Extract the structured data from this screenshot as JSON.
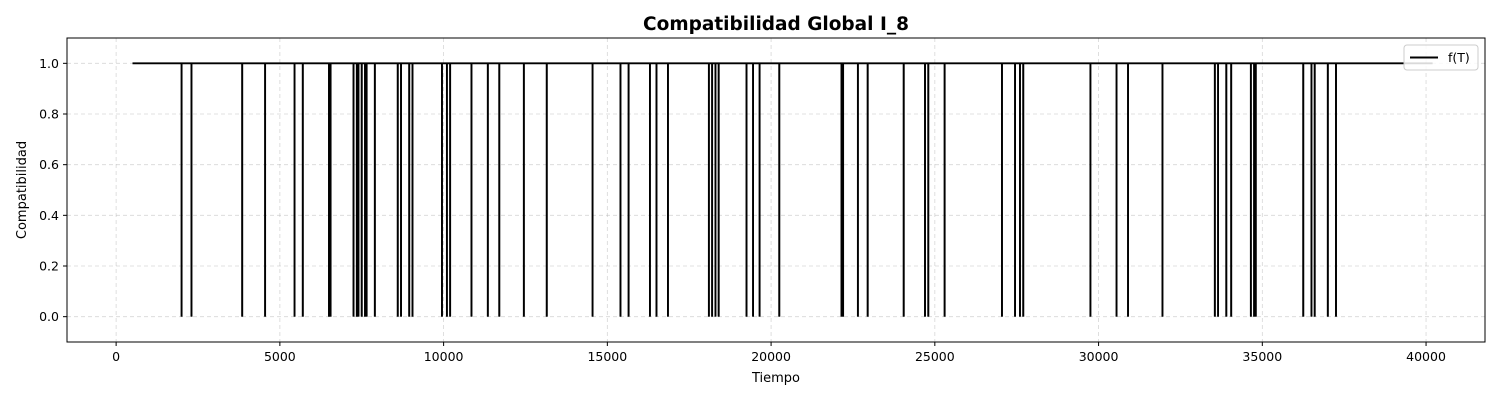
{
  "chart_data": {
    "type": "line",
    "title": "Compatibilidad Global I_8",
    "xlabel": "Tiempo",
    "ylabel": "Compatibilidad",
    "xlim": [
      -1500,
      41800
    ],
    "ylim": [
      -0.1,
      1.1
    ],
    "xticks": [
      0,
      5000,
      10000,
      15000,
      20000,
      25000,
      30000,
      35000,
      40000
    ],
    "yticks": [
      0.0,
      0.2,
      0.4,
      0.6,
      0.8,
      1.0
    ],
    "ytick_labels": [
      "0.0",
      "0.2",
      "0.4",
      "0.6",
      "0.8",
      "1.0"
    ],
    "grid": true,
    "legend_position": "top-right",
    "series": [
      {
        "name": "f(T)",
        "color": "#000000",
        "x_start": 500,
        "x_end": 40200,
        "baseline_value": 1.0,
        "drop_value": 0.0,
        "drop_times": [
          2000,
          2300,
          3850,
          4550,
          5450,
          5700,
          6500,
          6550,
          7250,
          7350,
          7400,
          7500,
          7600,
          7650,
          7900,
          8600,
          8700,
          8950,
          9050,
          9950,
          10100,
          10200,
          10850,
          11350,
          11700,
          12450,
          13150,
          14550,
          15400,
          15650,
          16300,
          16500,
          16850,
          18100,
          18200,
          18300,
          18400,
          19250,
          19450,
          19650,
          20250,
          22150,
          22200,
          22650,
          22950,
          24050,
          24700,
          24800,
          25300,
          27050,
          27450,
          27600,
          27700,
          29750,
          30550,
          30900,
          31950,
          33550,
          33650,
          33900,
          34050,
          34650,
          34750,
          34800,
          36250,
          36500,
          36600,
          37000,
          37250
        ]
      }
    ]
  }
}
